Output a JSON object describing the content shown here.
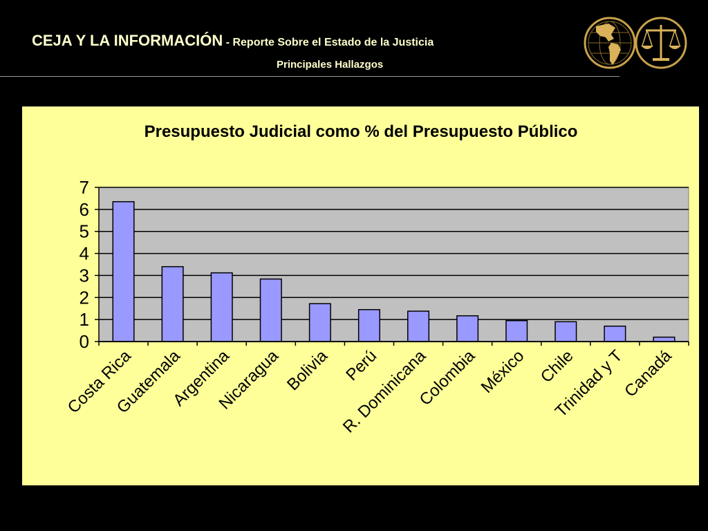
{
  "header": {
    "title_main": "CEJA Y LA INFORMACIÓN",
    "title_sep": " - ",
    "title_sub": "Reporte Sobre el Estado de la Justicia",
    "subtitle": "Principales Hallazgos"
  },
  "logos": {
    "globe_icon": "globe-americas-icon",
    "scales_icon": "scales-of-justice-icon"
  },
  "colors": {
    "background": "#000000",
    "header_text": "#FFFFCC",
    "panel": "#FFFF99",
    "plot_area": "#C0C0C0",
    "bar_fill": "#9999FF"
  },
  "chart_data": {
    "type": "bar",
    "title": "Presupuesto Judicial como % del Presupuesto Público",
    "categories": [
      "Costa Rica",
      "Guatemala",
      "Argentina",
      "Nicaragua",
      "Bolivia",
      "Perú",
      "R. Dominicana",
      "Colombia",
      "México",
      "Chile",
      "Trinidad y T",
      "Canadá"
    ],
    "values": [
      6.35,
      3.4,
      3.12,
      2.84,
      1.72,
      1.45,
      1.38,
      1.17,
      0.95,
      0.9,
      0.7,
      0.2
    ],
    "ylim": [
      0,
      7
    ],
    "yticks": [
      "0",
      "1",
      "2",
      "3",
      "4",
      "5",
      "6",
      "7"
    ],
    "grid": true,
    "legend": "none"
  }
}
